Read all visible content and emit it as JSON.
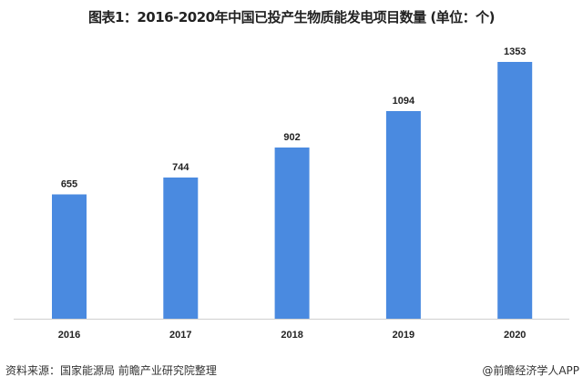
{
  "chart_data": {
    "type": "bar",
    "title": "图表1：2016-2020年中国已投产生物质能发电项目数量 (单位：个)",
    "categories": [
      "2016",
      "2017",
      "2018",
      "2019",
      "2020"
    ],
    "values": [
      655,
      744,
      902,
      1094,
      1353
    ],
    "xlabel": "",
    "ylabel": "",
    "ylim": [
      0,
      1353
    ],
    "grid": false,
    "legend": "none",
    "bar_color": "#4a8ae0",
    "axis_color": "#d0d0d0"
  },
  "footer": {
    "source": "资料来源：国家能源局 前瞻产业研究院整理",
    "credit": "@前瞻经济学人APP"
  },
  "watermark": "前瞻产业研究院"
}
